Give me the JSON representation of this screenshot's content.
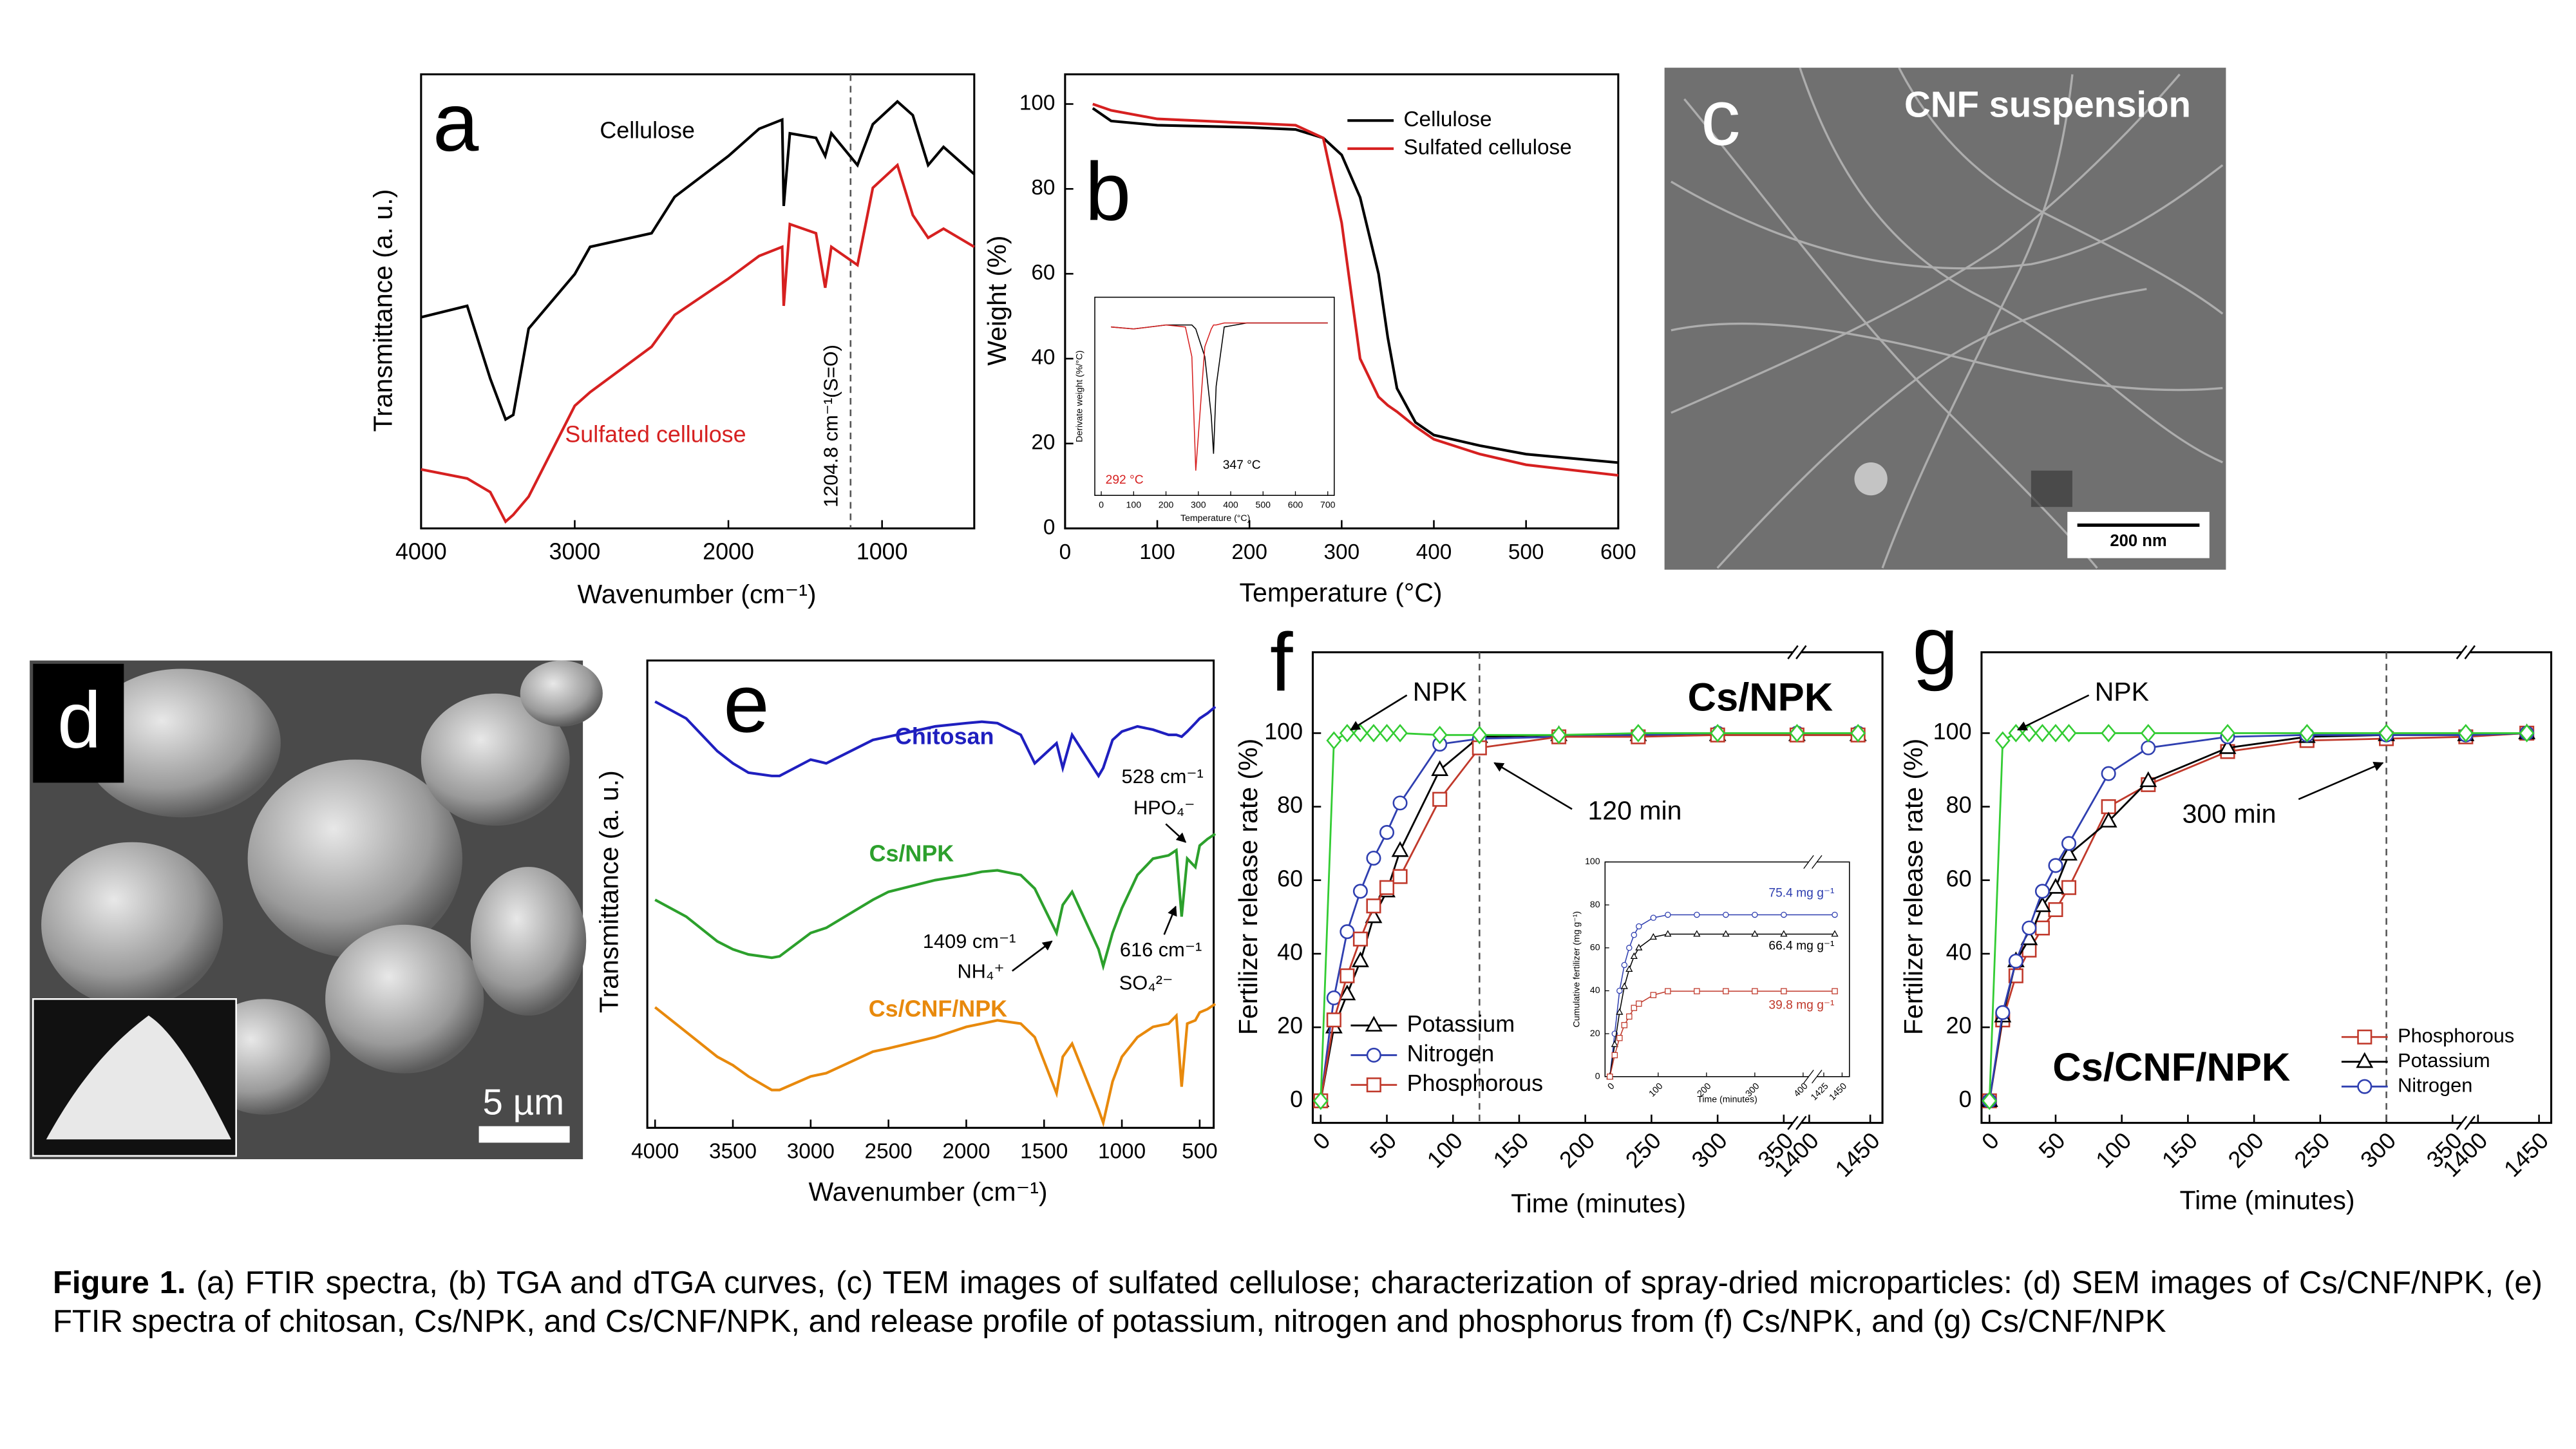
{
  "chart_data": [
    {
      "type": "line",
      "panel_label": "a",
      "x_label": "Wavenumber (cm⁻¹)",
      "y_label": "Transmittance (a. u.)",
      "legend": "inline",
      "xlim": [
        4000,
        400
      ],
      "ylim": [
        0,
        100
      ],
      "xticks": [
        4000,
        3000,
        2000,
        1000
      ],
      "vline": {
        "value": 1204.8,
        "label": "1204.8 cm⁻¹(S=O)",
        "style": "dashed"
      },
      "x": [
        4000,
        3700,
        3550,
        3450,
        3400,
        3300,
        3000,
        2900,
        2500,
        2350,
        2000,
        1800,
        1650,
        1640,
        1600,
        1430,
        1370,
        1330,
        1160,
        1060,
        900,
        800,
        700,
        600,
        400
      ],
      "series": [
        {
          "name": "Cellulose",
          "color": "#000000",
          "values": [
            46.5,
            49,
            33,
            24,
            25,
            44,
            56,
            62,
            65,
            73,
            82,
            88,
            90,
            71,
            87,
            86,
            82,
            87,
            80,
            89,
            94,
            91,
            80,
            84,
            78
          ]
        },
        {
          "name": "Sulfated cellulose",
          "color": "#d62020",
          "values": [
            13,
            11,
            8,
            1.5,
            3,
            7,
            27,
            30,
            40,
            47,
            55,
            60,
            62,
            49,
            67,
            65,
            53,
            62,
            58,
            75,
            80,
            69,
            64,
            66,
            62
          ]
        }
      ]
    },
    {
      "type": "line",
      "panel_label": "b",
      "x_label": "Temperature (°C)",
      "y_label": "Weight (%)",
      "legend": "upper right",
      "xlim": [
        0,
        600
      ],
      "ylim": [
        0,
        107
      ],
      "xticks": [
        0,
        100,
        200,
        300,
        400,
        500,
        600
      ],
      "yticks": [
        0,
        20,
        40,
        60,
        80,
        100
      ],
      "x": [
        30,
        50,
        100,
        200,
        250,
        280,
        300,
        320,
        340,
        350,
        360,
        380,
        400,
        450,
        500,
        600
      ],
      "series": [
        {
          "name": "Cellulose",
          "color": "#000000",
          "values": [
            99,
            96,
            95,
            94.5,
            94,
            92,
            88,
            78,
            60,
            45,
            33,
            25,
            22,
            19.5,
            17.5,
            15.5
          ]
        },
        {
          "name": "Sulfated cellulose",
          "color": "#d62020",
          "values": [
            100,
            98.5,
            96.5,
            95.5,
            95,
            92,
            72,
            40,
            31,
            29,
            27.5,
            24,
            21,
            17.5,
            15,
            12.5
          ]
        }
      ]
    },
    {
      "type": "line",
      "inset": true,
      "x_label": "Temperature (°C)",
      "y_label": "Derivate weight (%/°C)",
      "xlim": [
        -20,
        720
      ],
      "ylim": [
        0,
        100
      ],
      "xticks": [
        0,
        100,
        200,
        300,
        400,
        500,
        600,
        700
      ],
      "x": [
        30,
        100,
        200,
        260,
        280,
        292,
        300,
        320,
        340,
        347,
        355,
        380,
        450,
        600,
        700
      ],
      "series": [
        {
          "color": "#000000",
          "values": [
            85,
            84,
            86,
            86,
            86,
            84,
            80,
            70,
            40,
            21,
            55,
            85,
            87,
            87,
            87
          ]
        },
        {
          "color": "#d62020",
          "values": [
            85,
            84,
            86,
            85,
            70,
            12.5,
            30,
            75,
            84,
            86,
            86,
            87,
            87,
            87,
            87
          ]
        }
      ],
      "annotations": [
        {
          "text": "292 °C",
          "color": "#d62020"
        },
        {
          "text": "347 °C",
          "color": "#000000"
        }
      ]
    },
    {
      "type": "line",
      "panel_label": "e",
      "x_label": "Wavenumber (cm⁻¹)",
      "y_label": "Transmittance (a. u.)",
      "legend": "inline",
      "xlim": [
        4050,
        410
      ],
      "ylim": [
        0,
        100
      ],
      "xticks": [
        4000,
        3500,
        3000,
        2500,
        2000,
        1500,
        1000,
        500
      ],
      "x": [
        4000,
        3800,
        3600,
        3500,
        3400,
        3250,
        3200,
        3000,
        2900,
        2600,
        2500,
        2200,
        2000,
        1900,
        1800,
        1650,
        1560,
        1420,
        1380,
        1320,
        1150,
        1120,
        1060,
        1000,
        900,
        800,
        700,
        650,
        616,
        580,
        528,
        500,
        450,
        400
      ],
      "series": [
        {
          "name": "Chitosan",
          "color": "#1f1fbf",
          "values": [
            91.2,
            87.6,
            80.6,
            78,
            76,
            75.3,
            75.3,
            78.8,
            78,
            83,
            83.7,
            85.9,
            86.6,
            86.9,
            86.6,
            84.1,
            78,
            82.3,
            77,
            84.1,
            75.3,
            77,
            83,
            84.8,
            85.9,
            85.2,
            84.1,
            84.1,
            83.7,
            84.8,
            86.6,
            87.6,
            88.7,
            90.1
          ]
        },
        {
          "name": "Cs/NPK",
          "color": "#2ca02c",
          "values": [
            48.8,
            45.2,
            39.9,
            38.2,
            37.1,
            36.4,
            36.7,
            41.7,
            42.8,
            48.8,
            50.5,
            53,
            54.1,
            54.8,
            55.1,
            54.1,
            51.2,
            41.7,
            47.7,
            50.5,
            38.2,
            34.6,
            41.7,
            47,
            54.1,
            57.6,
            58.3,
            59.4,
            45.2,
            57.6,
            55.8,
            60.4,
            61.8,
            62.9
          ]
        },
        {
          "name": "Cs/CNF/NPK",
          "color": "#e8890c",
          "values": [
            25.8,
            20.5,
            15.2,
            13.4,
            11,
            8.1,
            8.1,
            11,
            11.7,
            16.3,
            17,
            19.4,
            21.6,
            22.3,
            23,
            22.3,
            19.4,
            7.4,
            15.2,
            18,
            3.9,
            1.1,
            9.9,
            15.2,
            19.4,
            21.6,
            22.3,
            24,
            8.8,
            22.3,
            23,
            24.7,
            25.4,
            26.5
          ]
        }
      ],
      "annotations": [
        {
          "text": "528 cm⁻¹",
          "color": "#000000"
        },
        {
          "text": "HPO₄⁻",
          "color": "#000000"
        },
        {
          "text": "1409 cm⁻¹",
          "color": "#000000"
        },
        {
          "text": "NH₄⁺",
          "color": "#000000"
        },
        {
          "text": "616 cm⁻¹",
          "color": "#000000"
        },
        {
          "text": "SO₄²⁻",
          "color": "#000000"
        }
      ]
    },
    {
      "type": "line",
      "panel_label": "f",
      "x_label": "Time (minutes)",
      "y_label": "Fertilizer release rate (%)",
      "legend": "lower left",
      "xlim": [
        -6,
        1460
      ],
      "xbreak": [
        360,
        1390
      ],
      "ylim": [
        -6,
        122
      ],
      "xticks": [
        0,
        50,
        100,
        150,
        200,
        250,
        300,
        350,
        1400,
        1450
      ],
      "yticks": [
        0,
        20,
        40,
        60,
        80,
        100
      ],
      "vline": {
        "value": 120,
        "style": "dashed"
      },
      "x": [
        0,
        10,
        20,
        30,
        40,
        50,
        60,
        90,
        120,
        180,
        240,
        300,
        360,
        1440
      ],
      "series": [
        {
          "name": "Potassium",
          "color": "#000000",
          "marker": "triangle",
          "values": [
            0,
            20,
            29,
            38,
            50,
            57,
            68,
            90,
            99,
            99.5,
            99.5,
            99.5,
            99.5,
            99.5
          ]
        },
        {
          "name": "Nitrogen",
          "color": "#2f3fb0",
          "marker": "circle",
          "values": [
            0,
            28,
            46,
            57,
            66,
            73,
            81,
            97,
            98.5,
            99,
            99.5,
            100,
            100,
            100
          ]
        },
        {
          "name": "Phosphorous",
          "color": "#c0392b",
          "marker": "square",
          "values": [
            0,
            22,
            34,
            44,
            53,
            58,
            61,
            82,
            96,
            99,
            99,
            99.5,
            99.5,
            99.5
          ]
        },
        {
          "name": "NPK",
          "color": "#33cc33",
          "marker": "diamond",
          "in_legend": false,
          "values": [
            0,
            98,
            100,
            100,
            100,
            100,
            100,
            99.5,
            99.5,
            99.5,
            100,
            100,
            100,
            100
          ]
        }
      ],
      "annotations": [
        {
          "text": "120 min",
          "color": "#000000"
        },
        {
          "text": "Cs/NPK",
          "color": "#000000",
          "style": "bold"
        }
      ]
    },
    {
      "type": "line",
      "inset": true,
      "x_label": "Time (minutes)",
      "y_label": "Cumulative fertilizer (mg g⁻¹)",
      "xlim": [
        -10,
        1460
      ],
      "xbreak": [
        420,
        1410
      ],
      "ylim": [
        0,
        100
      ],
      "xticks": [
        0,
        100,
        200,
        300,
        400,
        1425,
        1450
      ],
      "yticks": [
        0,
        20,
        40,
        60,
        80,
        100
      ],
      "x": [
        0,
        10,
        20,
        30,
        40,
        50,
        60,
        90,
        120,
        180,
        240,
        300,
        360,
        1440
      ],
      "series": [
        {
          "color": "#2f3fb0",
          "marker": "circle",
          "values": [
            0,
            20,
            40,
            52,
            60,
            66,
            70,
            74,
            75.4,
            75.4,
            75.4,
            75.4,
            75.4,
            75.4
          ]
        },
        {
          "color": "#000000",
          "marker": "triangle",
          "values": [
            0,
            15,
            30,
            42,
            50,
            56,
            60,
            65,
            66.4,
            66.4,
            66.4,
            66.4,
            66.4,
            66.4
          ]
        },
        {
          "color": "#c0392b",
          "marker": "square",
          "values": [
            0,
            10,
            18,
            24,
            28,
            32,
            34,
            38,
            39.8,
            39.8,
            39.8,
            39.8,
            39.8,
            39.8
          ]
        }
      ],
      "annotations": [
        {
          "text": "75.4 mg g⁻¹",
          "color": "#2f3fb0"
        },
        {
          "text": "66.4 mg g⁻¹",
          "color": "#000000"
        },
        {
          "text": "39.8 mg g⁻¹",
          "color": "#c0392b"
        }
      ]
    },
    {
      "type": "line",
      "panel_label": "g",
      "x_label": "Time (minutes)",
      "y_label": "Fertilizer release rate (%)",
      "legend": "lower right",
      "xlim": [
        -6,
        1460
      ],
      "xbreak": [
        360,
        1390
      ],
      "ylim": [
        -6,
        122
      ],
      "xticks": [
        0,
        50,
        100,
        150,
        200,
        250,
        300,
        350,
        1400,
        1450
      ],
      "yticks": [
        0,
        20,
        40,
        60,
        80,
        100
      ],
      "vline": {
        "value": 300,
        "style": "dashed"
      },
      "x": [
        0,
        10,
        20,
        30,
        40,
        50,
        60,
        90,
        120,
        180,
        240,
        300,
        360,
        1440
      ],
      "series": [
        {
          "name": "Phosphorous",
          "color": "#c0392b",
          "marker": "square",
          "values": [
            0,
            22,
            34,
            41,
            47,
            52,
            58,
            80,
            86,
            95,
            98,
            98.5,
            99,
            100
          ]
        },
        {
          "name": "Potassium",
          "color": "#000000",
          "marker": "triangle",
          "values": [
            0,
            23,
            38,
            44,
            53,
            58,
            67,
            76,
            87,
            96,
            99,
            99.5,
            99.5,
            100
          ]
        },
        {
          "name": "Nitrogen",
          "color": "#2f3fb0",
          "marker": "circle",
          "values": [
            0,
            24,
            38,
            47,
            57,
            64,
            70,
            89,
            96,
            99,
            99.5,
            99.5,
            99.5,
            100
          ]
        },
        {
          "name": "NPK",
          "color": "#33cc33",
          "marker": "diamond",
          "in_legend": false,
          "values": [
            0,
            98,
            100,
            100,
            100,
            100,
            100,
            100,
            100,
            100,
            100,
            100,
            100,
            100
          ]
        }
      ],
      "annotations": [
        {
          "text": "300 min",
          "color": "#000000"
        },
        {
          "text": "Cs/CNF/NPK",
          "color": "#000000",
          "style": "bold"
        }
      ]
    }
  ],
  "images": [
    {
      "panel_label": "c",
      "title": "CNF suspension",
      "scale_bar": "200 nm"
    },
    {
      "panel_label": "d",
      "scale_bar": "5 µm"
    }
  ],
  "caption": {
    "label": "Figure 1.",
    "text": "(a) FTIR spectra, (b) TGA and dTGA curves, (c) TEM images of sulfated cellulose; characterization of spray-dried microparticles: (d) SEM images of Cs/CNF/NPK, (e) FTIR spectra of chitosan, Cs/NPK, and Cs/CNF/NPK, and release profile of potassium, nitrogen and phosphorus from (f) Cs/NPK, and (g) Cs/CNF/NPK"
  }
}
